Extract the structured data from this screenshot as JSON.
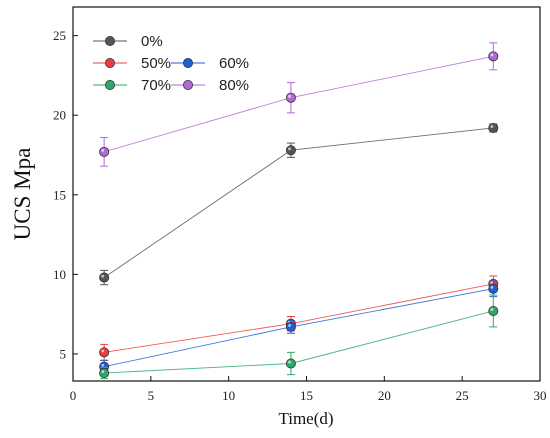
{
  "chart_data": {
    "type": "line",
    "xlabel": "Time(d)",
    "ylabel": "UCS Mpa",
    "xlim": [
      0,
      30
    ],
    "ylim": [
      3.3,
      26.8
    ],
    "xticks": [
      0,
      5,
      10,
      15,
      20,
      25,
      30
    ],
    "yticks": [
      5,
      10,
      15,
      20,
      25
    ],
    "grid": false,
    "legend_position": "top-left",
    "x": [
      2,
      14,
      27
    ],
    "series": [
      {
        "name": "0%",
        "color": "#555555",
        "values": [
          9.8,
          17.8,
          19.2
        ],
        "errors": [
          0.45,
          0.45,
          0.25
        ]
      },
      {
        "name": "50%",
        "color": "#ee3b3b",
        "values": [
          5.1,
          6.9,
          9.4
        ],
        "errors": [
          0.5,
          0.45,
          0.5
        ]
      },
      {
        "name": "60%",
        "color": "#1f5fd6",
        "values": [
          4.2,
          6.7,
          9.1
        ],
        "errors": [
          0.4,
          0.4,
          0.5
        ]
      },
      {
        "name": "70%",
        "color": "#2ea868",
        "values": [
          3.8,
          4.4,
          7.7
        ],
        "errors": [
          0.35,
          0.7,
          1.0
        ]
      },
      {
        "name": "80%",
        "color": "#b06ad8",
        "values": [
          17.7,
          21.1,
          23.7
        ],
        "errors": [
          0.9,
          0.95,
          0.85
        ]
      }
    ]
  }
}
